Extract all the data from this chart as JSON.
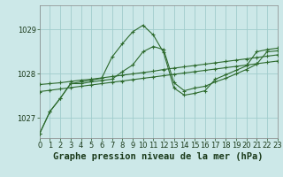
{
  "title": "Graphe pression niveau de la mer (hPa)",
  "bg_color": "#cce8e8",
  "grid_color": "#a0cccc",
  "line_color": "#2d6a2d",
  "xlim": [
    0,
    23
  ],
  "ylim": [
    1026.55,
    1029.55
  ],
  "yticks": [
    1027,
    1028,
    1029
  ],
  "xticks": [
    0,
    1,
    2,
    3,
    4,
    5,
    6,
    7,
    8,
    9,
    10,
    11,
    12,
    13,
    14,
    15,
    16,
    17,
    18,
    19,
    20,
    21,
    22,
    23
  ],
  "series1": [
    1026.65,
    1027.15,
    1027.45,
    1027.78,
    1027.78,
    1027.82,
    1027.85,
    1027.88,
    1028.05,
    1028.2,
    1028.5,
    1028.62,
    1028.55,
    1027.8,
    1027.62,
    1027.68,
    1027.72,
    1027.82,
    1027.9,
    1028.0,
    1028.1,
    1028.22,
    1028.5,
    1028.52
  ],
  "series2": [
    1026.65,
    1027.15,
    1027.45,
    1027.78,
    1027.82,
    1027.86,
    1027.9,
    1028.38,
    1028.68,
    1028.95,
    1029.1,
    1028.88,
    1028.48,
    1027.68,
    1027.52,
    1027.56,
    1027.62,
    1027.88,
    1027.98,
    1028.08,
    1028.18,
    1028.5,
    1028.55,
    1028.58
  ],
  "series3": [
    1027.76,
    1027.78,
    1027.8,
    1027.83,
    1027.86,
    1027.88,
    1027.91,
    1027.94,
    1027.97,
    1028.0,
    1028.03,
    1028.06,
    1028.1,
    1028.13,
    1028.16,
    1028.19,
    1028.22,
    1028.25,
    1028.28,
    1028.31,
    1028.34,
    1028.37,
    1028.4,
    1028.43
  ],
  "series4": [
    1027.6,
    1027.63,
    1027.66,
    1027.69,
    1027.72,
    1027.75,
    1027.78,
    1027.81,
    1027.84,
    1027.87,
    1027.9,
    1027.93,
    1027.96,
    1027.99,
    1028.02,
    1028.05,
    1028.08,
    1028.11,
    1028.14,
    1028.17,
    1028.2,
    1028.23,
    1028.26,
    1028.29
  ],
  "marker": "+",
  "marker_size": 3,
  "linewidth": 0.8,
  "title_fontsize": 7.5,
  "tick_fontsize": 6.0
}
